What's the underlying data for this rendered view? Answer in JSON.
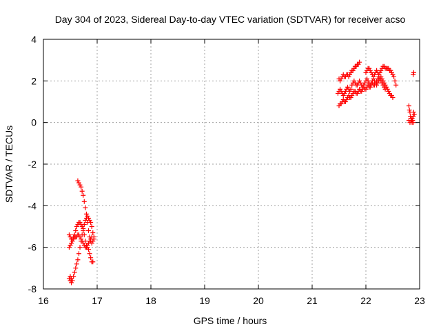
{
  "chart_data": {
    "type": "scatter",
    "title": "Day 304 of 2023, Sidereal Day-to-day VTEC variation (SDTVAR) for receiver acso",
    "xlabel": "GPS time / hours",
    "ylabel": "SDTVAR / TECUs",
    "xlim": [
      16,
      23
    ],
    "ylim": [
      -8,
      4
    ],
    "xticks": [
      16,
      17,
      18,
      19,
      20,
      21,
      22,
      23
    ],
    "yticks": [
      -8,
      -6,
      -4,
      -2,
      0,
      2,
      4
    ],
    "grid": true,
    "marker": "+",
    "color": "#ff0000",
    "series": [
      {
        "points": [
          [
            16.5,
            -7.6
          ],
          [
            16.52,
            -7.7
          ],
          [
            16.54,
            -7.6
          ],
          [
            16.56,
            -7.4
          ],
          [
            16.58,
            -7.2
          ],
          [
            16.6,
            -7.0
          ],
          [
            16.62,
            -6.8
          ],
          [
            16.64,
            -6.6
          ],
          [
            16.66,
            -6.3
          ],
          [
            16.68,
            -6.0
          ],
          [
            16.7,
            -5.7
          ],
          [
            16.72,
            -5.4
          ],
          [
            16.74,
            -5.1
          ],
          [
            16.76,
            -4.9
          ],
          [
            16.78,
            -4.7
          ],
          [
            16.8,
            -4.6
          ],
          [
            16.82,
            -4.5
          ],
          [
            16.84,
            -4.6
          ],
          [
            16.86,
            -4.7
          ],
          [
            16.88,
            -4.8
          ],
          [
            16.9,
            -5.0
          ],
          [
            16.92,
            -5.3
          ],
          [
            16.94,
            -5.5
          ],
          [
            16.48,
            -7.5
          ],
          [
            16.5,
            -7.4
          ],
          [
            16.52,
            -7.5
          ],
          [
            16.48,
            -5.4
          ],
          [
            16.5,
            -5.5
          ],
          [
            16.52,
            -5.6
          ],
          [
            16.54,
            -5.6
          ],
          [
            16.56,
            -5.5
          ],
          [
            16.58,
            -5.5
          ],
          [
            16.6,
            -5.5
          ],
          [
            16.62,
            -5.5
          ],
          [
            16.64,
            -5.4
          ],
          [
            16.66,
            -5.4
          ],
          [
            16.68,
            -5.5
          ],
          [
            16.7,
            -5.6
          ],
          [
            16.72,
            -5.7
          ],
          [
            16.74,
            -5.8
          ],
          [
            16.76,
            -5.9
          ],
          [
            16.78,
            -6.0
          ],
          [
            16.8,
            -6.0
          ],
          [
            16.82,
            -5.9
          ],
          [
            16.84,
            -5.8
          ],
          [
            16.86,
            -5.7
          ],
          [
            16.88,
            -5.6
          ],
          [
            16.9,
            -5.5
          ],
          [
            16.48,
            -6.0
          ],
          [
            16.5,
            -5.9
          ],
          [
            16.52,
            -5.8
          ],
          [
            16.54,
            -5.7
          ],
          [
            16.56,
            -5.6
          ],
          [
            16.58,
            -5.4
          ],
          [
            16.6,
            -5.2
          ],
          [
            16.62,
            -5.0
          ],
          [
            16.64,
            -4.9
          ],
          [
            16.66,
            -4.8
          ],
          [
            16.68,
            -4.8
          ],
          [
            16.7,
            -4.9
          ],
          [
            16.72,
            -5.0
          ],
          [
            16.74,
            -5.2
          ],
          [
            16.76,
            -5.4
          ],
          [
            16.78,
            -5.7
          ],
          [
            16.8,
            -5.9
          ],
          [
            16.82,
            -6.0
          ],
          [
            16.84,
            -6.1
          ],
          [
            16.86,
            -6.3
          ],
          [
            16.88,
            -6.5
          ],
          [
            16.9,
            -6.7
          ],
          [
            16.92,
            -6.7
          ],
          [
            16.64,
            -2.8
          ],
          [
            16.66,
            -2.9
          ],
          [
            16.68,
            -3.0
          ],
          [
            16.7,
            -3.1
          ],
          [
            16.72,
            -3.3
          ],
          [
            16.74,
            -3.5
          ],
          [
            16.76,
            -3.8
          ],
          [
            16.78,
            -4.1
          ],
          [
            16.8,
            -4.4
          ],
          [
            16.82,
            -4.8
          ],
          [
            16.84,
            -5.2
          ],
          [
            16.86,
            -5.5
          ],
          [
            16.88,
            -5.7
          ],
          [
            16.9,
            -5.8
          ],
          [
            16.92,
            -5.7
          ],
          [
            16.94,
            -5.6
          ]
        ]
      },
      {
        "points": [
          [
            21.48,
            1.4
          ],
          [
            21.5,
            1.5
          ],
          [
            21.52,
            1.6
          ],
          [
            21.54,
            1.5
          ],
          [
            21.56,
            1.4
          ],
          [
            21.58,
            1.3
          ],
          [
            21.6,
            1.4
          ],
          [
            21.62,
            1.5
          ],
          [
            21.64,
            1.6
          ],
          [
            21.66,
            1.7
          ],
          [
            21.68,
            1.6
          ],
          [
            21.7,
            1.5
          ],
          [
            21.72,
            1.6
          ],
          [
            21.74,
            1.8
          ],
          [
            21.76,
            1.9
          ],
          [
            21.78,
            2.0
          ],
          [
            21.8,
            1.9
          ],
          [
            21.82,
            1.8
          ],
          [
            21.84,
            1.8
          ],
          [
            21.86,
            1.9
          ],
          [
            21.88,
            2.0
          ],
          [
            21.9,
            1.9
          ],
          [
            21.92,
            1.8
          ],
          [
            21.94,
            1.7
          ],
          [
            21.96,
            1.8
          ],
          [
            21.98,
            1.9
          ],
          [
            22.0,
            2.0
          ],
          [
            22.02,
            2.1
          ],
          [
            22.04,
            2.0
          ],
          [
            22.06,
            1.9
          ],
          [
            22.08,
            1.8
          ],
          [
            22.1,
            1.9
          ],
          [
            22.12,
            2.0
          ],
          [
            22.14,
            2.1
          ],
          [
            22.16,
            2.0
          ],
          [
            22.18,
            1.9
          ],
          [
            22.2,
            1.8
          ],
          [
            22.22,
            1.9
          ],
          [
            22.24,
            2.0
          ],
          [
            22.26,
            2.1
          ],
          [
            22.28,
            2.2
          ],
          [
            22.3,
            2.1
          ],
          [
            22.32,
            2.0
          ],
          [
            22.34,
            1.9
          ],
          [
            22.36,
            1.8
          ],
          [
            22.38,
            1.7
          ],
          [
            22.4,
            1.6
          ],
          [
            22.42,
            1.5
          ],
          [
            22.44,
            1.4
          ],
          [
            22.46,
            1.3
          ],
          [
            22.48,
            1.3
          ],
          [
            22.5,
            1.2
          ],
          [
            21.5,
            0.8
          ],
          [
            21.52,
            0.9
          ],
          [
            21.54,
            0.9
          ],
          [
            21.56,
            1.0
          ],
          [
            21.58,
            1.1
          ],
          [
            21.6,
            1.0
          ],
          [
            21.62,
            1.0
          ],
          [
            21.64,
            1.1
          ],
          [
            21.66,
            1.2
          ],
          [
            21.68,
            1.3
          ],
          [
            21.7,
            1.2
          ],
          [
            21.72,
            1.2
          ],
          [
            21.74,
            1.3
          ],
          [
            21.76,
            1.4
          ],
          [
            21.78,
            1.5
          ],
          [
            21.8,
            1.5
          ],
          [
            21.82,
            1.4
          ],
          [
            21.84,
            1.4
          ],
          [
            21.86,
            1.5
          ],
          [
            21.88,
            1.6
          ],
          [
            21.9,
            1.5
          ],
          [
            21.92,
            1.5
          ],
          [
            21.94,
            1.6
          ],
          [
            21.96,
            1.7
          ],
          [
            21.98,
            1.6
          ],
          [
            22.0,
            1.6
          ],
          [
            22.02,
            1.7
          ],
          [
            22.04,
            1.8
          ],
          [
            22.06,
            1.7
          ],
          [
            22.08,
            1.7
          ],
          [
            22.1,
            1.8
          ],
          [
            22.12,
            1.9
          ],
          [
            22.14,
            1.8
          ],
          [
            22.16,
            1.8
          ],
          [
            22.18,
            1.9
          ],
          [
            22.2,
            2.0
          ],
          [
            22.22,
            2.1
          ],
          [
            22.24,
            2.2
          ],
          [
            22.26,
            2.1
          ],
          [
            22.28,
            2.0
          ],
          [
            22.3,
            1.9
          ],
          [
            22.32,
            1.8
          ],
          [
            22.34,
            1.7
          ],
          [
            22.36,
            1.6
          ],
          [
            21.5,
            2.1
          ],
          [
            21.52,
            2.0
          ],
          [
            21.54,
            2.1
          ],
          [
            21.56,
            2.2
          ],
          [
            21.58,
            2.3
          ],
          [
            21.6,
            2.2
          ],
          [
            21.62,
            2.2
          ],
          [
            21.64,
            2.3
          ],
          [
            21.66,
            2.3
          ],
          [
            21.68,
            2.2
          ],
          [
            21.7,
            2.3
          ],
          [
            21.72,
            2.4
          ],
          [
            21.74,
            2.5
          ],
          [
            21.76,
            2.5
          ],
          [
            21.78,
            2.6
          ],
          [
            21.8,
            2.7
          ],
          [
            21.82,
            2.7
          ],
          [
            21.84,
            2.8
          ],
          [
            21.86,
            2.8
          ],
          [
            21.88,
            2.9
          ],
          [
            22.0,
            2.4
          ],
          [
            22.02,
            2.5
          ],
          [
            22.04,
            2.6
          ],
          [
            22.06,
            2.6
          ],
          [
            22.08,
            2.5
          ],
          [
            22.1,
            2.4
          ],
          [
            22.12,
            2.3
          ],
          [
            22.14,
            2.2
          ],
          [
            22.16,
            2.3
          ],
          [
            22.18,
            2.4
          ],
          [
            22.2,
            2.5
          ],
          [
            22.22,
            2.4
          ],
          [
            22.24,
            2.3
          ],
          [
            22.26,
            2.4
          ],
          [
            22.28,
            2.5
          ],
          [
            22.3,
            2.6
          ],
          [
            22.32,
            2.7
          ],
          [
            22.34,
            2.7
          ],
          [
            22.36,
            2.6
          ],
          [
            22.38,
            2.6
          ],
          [
            22.4,
            2.6
          ],
          [
            22.42,
            2.6
          ],
          [
            22.44,
            2.5
          ],
          [
            22.46,
            2.5
          ],
          [
            22.48,
            2.4
          ],
          [
            22.5,
            2.3
          ],
          [
            22.52,
            2.2
          ],
          [
            22.54,
            2.0
          ],
          [
            22.56,
            1.8
          ],
          [
            22.8,
            0.8
          ],
          [
            22.81,
            0.6
          ],
          [
            22.82,
            0.5
          ],
          [
            22.83,
            0.3
          ],
          [
            22.84,
            0.2
          ],
          [
            22.85,
            0.1
          ],
          [
            22.86,
            0.0
          ],
          [
            22.87,
            0.1
          ],
          [
            22.88,
            0.3
          ],
          [
            22.89,
            0.5
          ],
          [
            22.9,
            0.4
          ],
          [
            22.8,
            0.1
          ],
          [
            22.82,
            0.0
          ],
          [
            22.84,
            0.1
          ],
          [
            22.86,
            0.2
          ],
          [
            22.88,
            0.0
          ],
          [
            22.88,
            2.3
          ],
          [
            22.89,
            2.4
          ]
        ]
      }
    ]
  }
}
